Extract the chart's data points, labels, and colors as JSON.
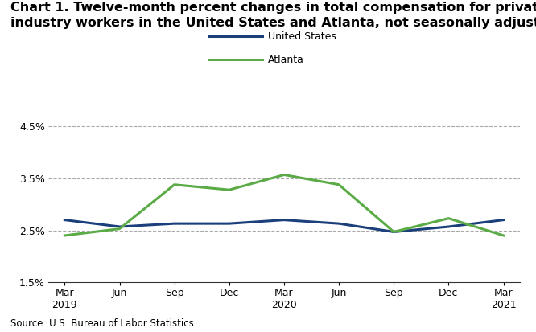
{
  "title_line1": "Chart 1. Twelve-month percent changes in total compensation for private",
  "title_line2": "industry workers in the United States and Atlanta, not seasonally adjusted",
  "source": "Source: U.S. Bureau of Labor Statistics.",
  "x_labels": [
    "Mar\n2019",
    "Jun",
    "Sep",
    "Dec",
    "Mar\n2020",
    "Jun",
    "Sep",
    "Dec",
    "Mar\n2021"
  ],
  "us_values": [
    2.7,
    2.57,
    2.63,
    2.63,
    2.7,
    2.63,
    2.47,
    2.57,
    2.7
  ],
  "atlanta_values": [
    2.4,
    2.53,
    3.38,
    3.28,
    3.57,
    3.38,
    2.47,
    2.73,
    2.4
  ],
  "us_color": "#1a3f7a",
  "atlanta_color": "#5aaa45",
  "ylim": [
    1.5,
    4.7
  ],
  "yticks": [
    1.5,
    2.5,
    3.5,
    4.5
  ],
  "ytick_labels": [
    "1.5%",
    "2.5%",
    "3.5%",
    "4.5%"
  ],
  "grid_color": "#aaaaaa",
  "line_width": 2.2,
  "legend_labels": [
    "United States",
    "Atlanta"
  ],
  "background_color": "#ffffff",
  "title_fontsize": 11.5,
  "axis_fontsize": 9,
  "source_fontsize": 8.5
}
